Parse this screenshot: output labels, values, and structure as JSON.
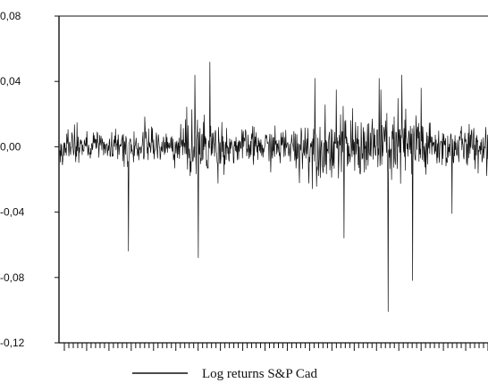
{
  "chart_data": {
    "type": "line",
    "title": "",
    "xlabel": "",
    "ylabel": "",
    "ylim": [
      -0.12,
      0.08
    ],
    "y_ticks": [
      0.08,
      0.04,
      0.0,
      -0.04,
      -0.08,
      -0.12
    ],
    "y_tick_labels": [
      "0,08",
      "0,04",
      "0,00",
      "-0,04",
      "-0,08",
      "-0,12"
    ],
    "grid": false,
    "legend_placement": "bottom-center",
    "series": [
      {
        "name": "Log returns S&P Cad",
        "color": "#111111",
        "approx_length": 1000,
        "spikes": [
          {
            "index": 160,
            "value": -0.064
          },
          {
            "index": 315,
            "value": 0.044
          },
          {
            "index": 323,
            "value": -0.068
          },
          {
            "index": 350,
            "value": 0.052
          },
          {
            "index": 595,
            "value": 0.042
          },
          {
            "index": 645,
            "value": 0.035
          },
          {
            "index": 663,
            "value": -0.056
          },
          {
            "index": 745,
            "value": 0.042
          },
          {
            "index": 766,
            "value": -0.101
          },
          {
            "index": 798,
            "value": 0.044
          },
          {
            "index": 823,
            "value": -0.082
          },
          {
            "index": 843,
            "value": 0.036
          },
          {
            "index": 915,
            "value": -0.041
          }
        ]
      }
    ]
  },
  "legend": {
    "label": "Log returns S&P Cad"
  }
}
